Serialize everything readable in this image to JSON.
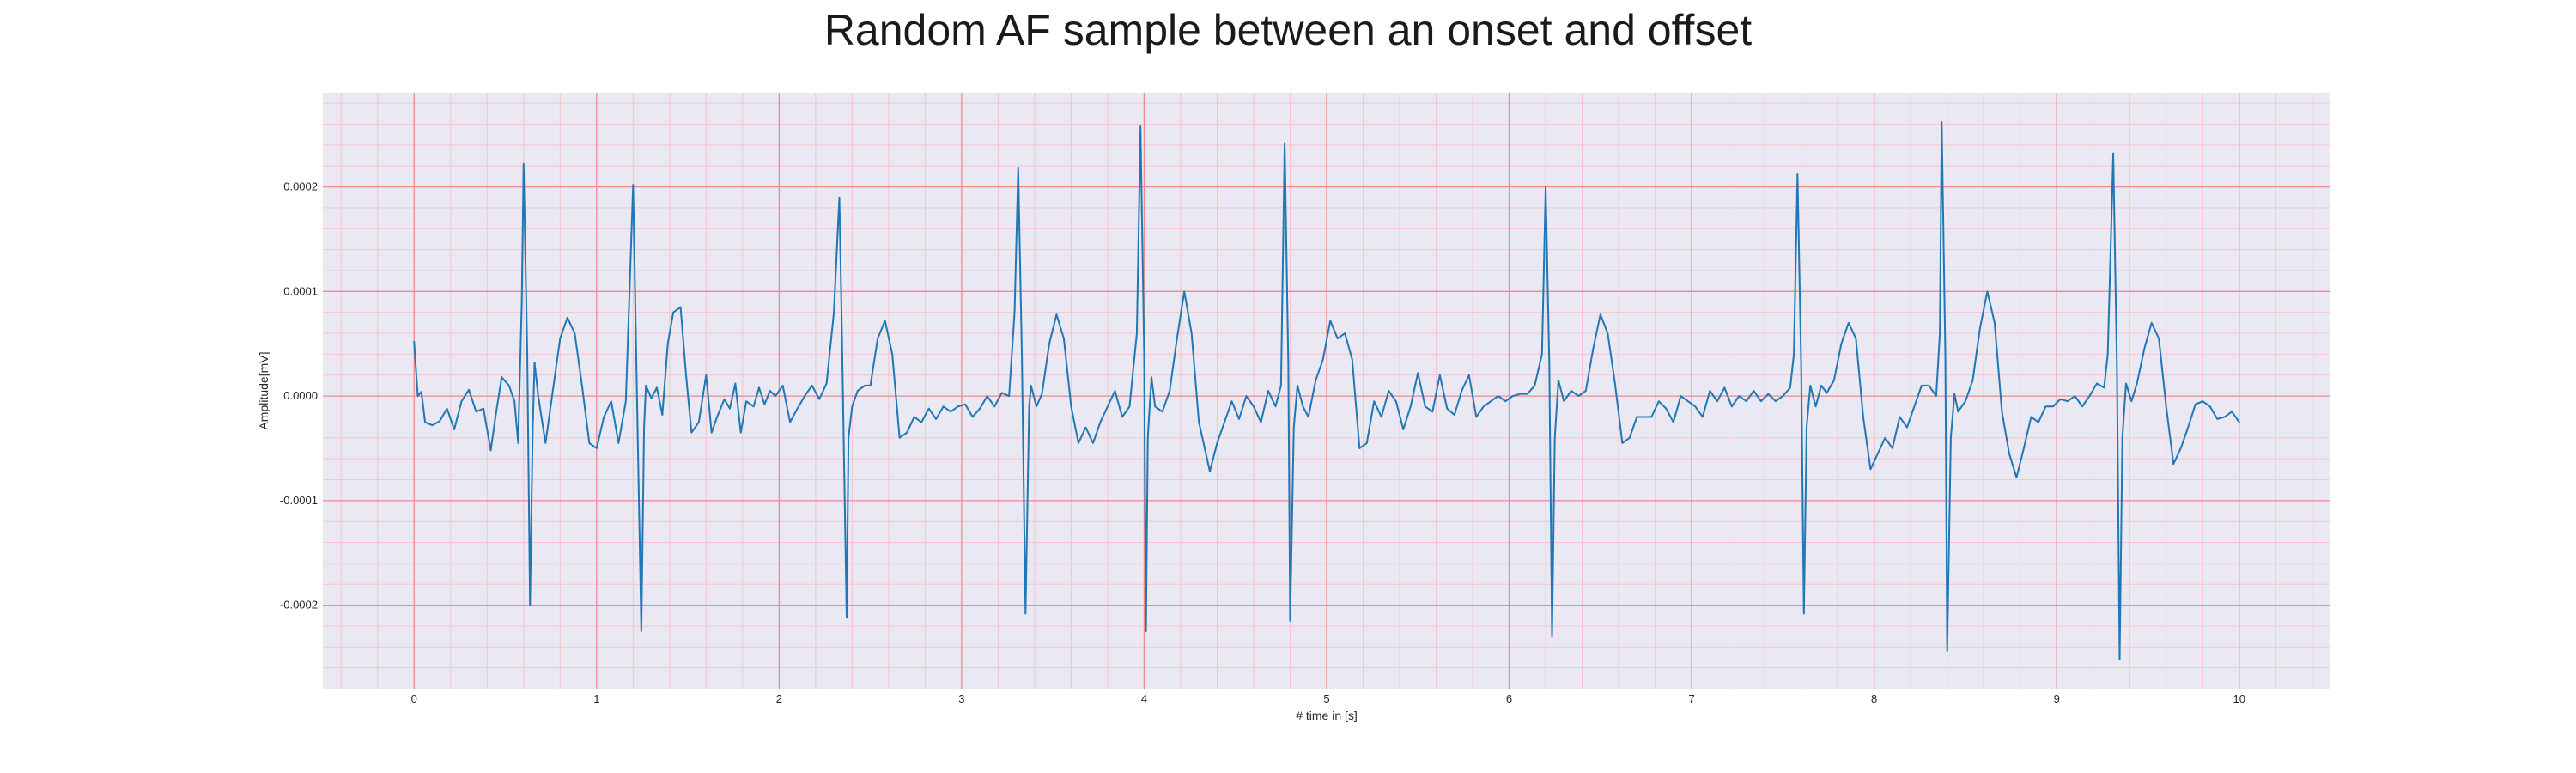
{
  "chart_data": {
    "type": "line",
    "title": "Random AF sample between an onset and offset",
    "xlabel": "# time in [s]",
    "ylabel": "Amplitude[mV]",
    "xlim": [
      -0.5,
      10.5
    ],
    "ylim": [
      -0.00028,
      0.00029
    ],
    "x_ticks": [
      0,
      1,
      2,
      3,
      4,
      5,
      6,
      7,
      8,
      9,
      10
    ],
    "x_tick_labels": [
      "0",
      "1",
      "2",
      "3",
      "4",
      "5",
      "6",
      "7",
      "8",
      "9",
      "10"
    ],
    "y_ticks": [
      -0.0002,
      -0.0001,
      0.0,
      0.0001,
      0.0002
    ],
    "y_tick_labels": [
      "-0.0002",
      "-0.0001",
      "0.0000",
      "0.0001",
      "0.0002"
    ],
    "grid": true,
    "minor_grid": true,
    "colors": {
      "line": "#1f77b4",
      "plot_background": "#eae8f2",
      "major_grid": "#f08a8a",
      "minor_grid": "#f4c6c8"
    },
    "series": [
      {
        "values": [
          [
            0.0,
            5.2e-05
          ],
          [
            0.02,
            0.0
          ],
          [
            0.04,
            4e-06
          ],
          [
            0.06,
            -2.5e-05
          ],
          [
            0.1,
            -2.8e-05
          ],
          [
            0.14,
            -2.4e-05
          ],
          [
            0.18,
            -1.2e-05
          ],
          [
            0.22,
            -3.2e-05
          ],
          [
            0.26,
            -5e-06
          ],
          [
            0.3,
            6e-06
          ],
          [
            0.34,
            -1.5e-05
          ],
          [
            0.38,
            -1.2e-05
          ],
          [
            0.42,
            -5.2e-05
          ],
          [
            0.45,
            -1.5e-05
          ],
          [
            0.48,
            1.8e-05
          ],
          [
            0.52,
            1e-05
          ],
          [
            0.55,
            -5e-06
          ],
          [
            0.57,
            -4.5e-05
          ],
          [
            0.59,
            9e-05
          ],
          [
            0.6,
            0.000222
          ],
          [
            0.62,
            4e-05
          ],
          [
            0.635,
            -0.0002
          ],
          [
            0.65,
            -3e-05
          ],
          [
            0.66,
            3.2e-05
          ],
          [
            0.68,
            0.0
          ],
          [
            0.72,
            -4.5e-05
          ],
          [
            0.76,
            5e-06
          ],
          [
            0.8,
            5.5e-05
          ],
          [
            0.84,
            7.5e-05
          ],
          [
            0.88,
            6e-05
          ],
          [
            0.92,
            1e-05
          ],
          [
            0.96,
            -4.5e-05
          ],
          [
            1.0,
            -5e-05
          ],
          [
            1.04,
            -2e-05
          ],
          [
            1.08,
            -5e-06
          ],
          [
            1.12,
            -4.5e-05
          ],
          [
            1.16,
            -5e-06
          ],
          [
            1.2,
            0.000202
          ],
          [
            1.22,
            1e-05
          ],
          [
            1.245,
            -0.000225
          ],
          [
            1.26,
            -3e-05
          ],
          [
            1.27,
            1e-05
          ],
          [
            1.3,
            -2e-06
          ],
          [
            1.33,
            8e-06
          ],
          [
            1.36,
            -1.8e-05
          ],
          [
            1.39,
            5e-05
          ],
          [
            1.42,
            8e-05
          ],
          [
            1.46,
            8.5e-05
          ],
          [
            1.49,
            2e-05
          ],
          [
            1.52,
            -3.5e-05
          ],
          [
            1.56,
            -2.5e-05
          ],
          [
            1.6,
            2e-05
          ],
          [
            1.63,
            -3.5e-05
          ],
          [
            1.66,
            -2e-05
          ],
          [
            1.7,
            -3e-06
          ],
          [
            1.73,
            -1.2e-05
          ],
          [
            1.76,
            1.2e-05
          ],
          [
            1.79,
            -3.5e-05
          ],
          [
            1.82,
            -5e-06
          ],
          [
            1.86,
            -1e-05
          ],
          [
            1.89,
            8e-06
          ],
          [
            1.92,
            -8e-06
          ],
          [
            1.95,
            5e-06
          ],
          [
            1.98,
            0.0
          ],
          [
            2.02,
            1e-05
          ],
          [
            2.06,
            -2.5e-05
          ],
          [
            2.1,
            -1.2e-05
          ],
          [
            2.14,
            0.0
          ],
          [
            2.18,
            1e-05
          ],
          [
            2.22,
            -3e-06
          ],
          [
            2.26,
            1.2e-05
          ],
          [
            2.3,
            8e-05
          ],
          [
            2.33,
            0.00019
          ],
          [
            2.345,
            5e-05
          ],
          [
            2.37,
            -0.000212
          ],
          [
            2.38,
            -4e-05
          ],
          [
            2.4,
            -1e-05
          ],
          [
            2.43,
            5e-06
          ],
          [
            2.47,
            1e-05
          ],
          [
            2.5,
            1e-05
          ],
          [
            2.54,
            5.5e-05
          ],
          [
            2.58,
            7.2e-05
          ],
          [
            2.62,
            4e-05
          ],
          [
            2.66,
            -4e-05
          ],
          [
            2.7,
            -3.5e-05
          ],
          [
            2.74,
            -2e-05
          ],
          [
            2.78,
            -2.5e-05
          ],
          [
            2.82,
            -1.2e-05
          ],
          [
            2.86,
            -2.2e-05
          ],
          [
            2.9,
            -1e-05
          ],
          [
            2.94,
            -1.5e-05
          ],
          [
            2.98,
            -1e-05
          ],
          [
            3.02,
            -8e-06
          ],
          [
            3.06,
            -2e-05
          ],
          [
            3.1,
            -1.2e-05
          ],
          [
            3.14,
            0.0
          ],
          [
            3.18,
            -1e-05
          ],
          [
            3.22,
            3e-06
          ],
          [
            3.26,
            0.0
          ],
          [
            3.29,
            8e-05
          ],
          [
            3.31,
            0.000218
          ],
          [
            3.33,
            4e-05
          ],
          [
            3.35,
            -0.000208
          ],
          [
            3.37,
            -1e-05
          ],
          [
            3.38,
            1e-05
          ],
          [
            3.41,
            -1e-05
          ],
          [
            3.44,
            2e-06
          ],
          [
            3.48,
            5e-05
          ],
          [
            3.52,
            7.8e-05
          ],
          [
            3.56,
            5.5e-05
          ],
          [
            3.6,
            -1e-05
          ],
          [
            3.64,
            -4.5e-05
          ],
          [
            3.68,
            -3e-05
          ],
          [
            3.72,
            -4.5e-05
          ],
          [
            3.76,
            -2.5e-05
          ],
          [
            3.8,
            -1e-05
          ],
          [
            3.84,
            5e-06
          ],
          [
            3.88,
            -2e-05
          ],
          [
            3.92,
            -1e-05
          ],
          [
            3.96,
            6e-05
          ],
          [
            3.98,
            0.000258
          ],
          [
            4.0,
            4e-05
          ],
          [
            4.01,
            -0.000225
          ],
          [
            4.02,
            -4e-05
          ],
          [
            4.04,
            1.8e-05
          ],
          [
            4.06,
            -1e-05
          ],
          [
            4.1,
            -1.5e-05
          ],
          [
            4.14,
            5e-06
          ],
          [
            4.18,
            5.5e-05
          ],
          [
            4.22,
            0.0001
          ],
          [
            4.26,
            6e-05
          ],
          [
            4.3,
            -2.5e-05
          ],
          [
            4.36,
            -7.2e-05
          ],
          [
            4.4,
            -4.5e-05
          ],
          [
            4.44,
            -2.5e-05
          ],
          [
            4.48,
            -5e-06
          ],
          [
            4.52,
            -2.2e-05
          ],
          [
            4.56,
            0.0
          ],
          [
            4.6,
            -1e-05
          ],
          [
            4.64,
            -2.5e-05
          ],
          [
            4.68,
            5e-06
          ],
          [
            4.72,
            -1e-05
          ],
          [
            4.75,
            1e-05
          ],
          [
            4.77,
            0.000242
          ],
          [
            4.79,
            3e-05
          ],
          [
            4.8,
            -0.000215
          ],
          [
            4.82,
            -3e-05
          ],
          [
            4.84,
            1e-05
          ],
          [
            4.87,
            -1e-05
          ],
          [
            4.9,
            -2e-05
          ],
          [
            4.94,
            1.5e-05
          ],
          [
            4.98,
            3.5e-05
          ],
          [
            5.02,
            7.2e-05
          ],
          [
            5.06,
            5.5e-05
          ],
          [
            5.1,
            6e-05
          ],
          [
            5.14,
            3.5e-05
          ],
          [
            5.18,
            -5e-05
          ],
          [
            5.22,
            -4.5e-05
          ],
          [
            5.26,
            -5e-06
          ],
          [
            5.3,
            -2e-05
          ],
          [
            5.34,
            5e-06
          ],
          [
            5.38,
            -5e-06
          ],
          [
            5.42,
            -3.2e-05
          ],
          [
            5.46,
            -1e-05
          ],
          [
            5.5,
            2.2e-05
          ],
          [
            5.54,
            -1e-05
          ],
          [
            5.58,
            -1.5e-05
          ],
          [
            5.62,
            2e-05
          ],
          [
            5.66,
            -1.2e-05
          ],
          [
            5.7,
            -1.8e-05
          ],
          [
            5.74,
            5e-06
          ],
          [
            5.78,
            2e-05
          ],
          [
            5.82,
            -2e-05
          ],
          [
            5.86,
            -1e-05
          ],
          [
            5.9,
            -5e-06
          ],
          [
            5.94,
            0.0
          ],
          [
            5.98,
            -5e-06
          ],
          [
            6.02,
            0.0
          ],
          [
            6.06,
            2e-06
          ],
          [
            6.1,
            2e-06
          ],
          [
            6.14,
            1e-05
          ],
          [
            6.18,
            4e-05
          ],
          [
            6.2,
            0.0002
          ],
          [
            6.22,
            3e-05
          ],
          [
            6.235,
            -0.00023
          ],
          [
            6.25,
            -4e-05
          ],
          [
            6.27,
            1.5e-05
          ],
          [
            6.3,
            -5e-06
          ],
          [
            6.34,
            5e-06
          ],
          [
            6.38,
            0.0
          ],
          [
            6.42,
            5e-06
          ],
          [
            6.46,
            4.5e-05
          ],
          [
            6.5,
            7.8e-05
          ],
          [
            6.54,
            6e-05
          ],
          [
            6.58,
            1.2e-05
          ],
          [
            6.62,
            -4.5e-05
          ],
          [
            6.66,
            -4e-05
          ],
          [
            6.7,
            -2e-05
          ],
          [
            6.74,
            -2e-05
          ],
          [
            6.78,
            -2e-05
          ],
          [
            6.82,
            -5e-06
          ],
          [
            6.86,
            -1.2e-05
          ],
          [
            6.9,
            -2.5e-05
          ],
          [
            6.94,
            0.0
          ],
          [
            6.98,
            -5e-06
          ],
          [
            7.02,
            -1e-05
          ],
          [
            7.06,
            -2e-05
          ],
          [
            7.1,
            5e-06
          ],
          [
            7.14,
            -5e-06
          ],
          [
            7.18,
            8e-06
          ],
          [
            7.22,
            -1e-05
          ],
          [
            7.26,
            0.0
          ],
          [
            7.3,
            -5e-06
          ],
          [
            7.34,
            5e-06
          ],
          [
            7.38,
            -5e-06
          ],
          [
            7.42,
            2e-06
          ],
          [
            7.46,
            -5e-06
          ],
          [
            7.5,
            0.0
          ],
          [
            7.54,
            8e-06
          ],
          [
            7.56,
            4e-05
          ],
          [
            7.58,
            0.000212
          ],
          [
            7.6,
            3e-05
          ],
          [
            7.615,
            -0.000208
          ],
          [
            7.63,
            -3e-05
          ],
          [
            7.65,
            1e-05
          ],
          [
            7.68,
            -1e-05
          ],
          [
            7.71,
            1e-05
          ],
          [
            7.74,
            3e-06
          ],
          [
            7.78,
            1.5e-05
          ],
          [
            7.82,
            5e-05
          ],
          [
            7.86,
            7e-05
          ],
          [
            7.9,
            5.5e-05
          ],
          [
            7.94,
            -2e-05
          ],
          [
            7.98,
            -7e-05
          ],
          [
            8.02,
            -5.5e-05
          ],
          [
            8.06,
            -4e-05
          ],
          [
            8.1,
            -5e-05
          ],
          [
            8.14,
            -2e-05
          ],
          [
            8.18,
            -3e-05
          ],
          [
            8.22,
            -1e-05
          ],
          [
            8.26,
            1e-05
          ],
          [
            8.3,
            1e-05
          ],
          [
            8.34,
            0.0
          ],
          [
            8.36,
            6e-05
          ],
          [
            8.37,
            0.000262
          ],
          [
            8.39,
            4e-05
          ],
          [
            8.4,
            -0.000244
          ],
          [
            8.42,
            -4e-05
          ],
          [
            8.44,
            2e-06
          ],
          [
            8.46,
            -1.5e-05
          ],
          [
            8.5,
            -5e-06
          ],
          [
            8.54,
            1.5e-05
          ],
          [
            8.58,
            6.5e-05
          ],
          [
            8.62,
            0.0001
          ],
          [
            8.66,
            7e-05
          ],
          [
            8.7,
            -1.5e-05
          ],
          [
            8.74,
            -5.5e-05
          ],
          [
            8.78,
            -7.8e-05
          ],
          [
            8.82,
            -5e-05
          ],
          [
            8.86,
            -2e-05
          ],
          [
            8.9,
            -2.5e-05
          ],
          [
            8.94,
            -1e-05
          ],
          [
            8.98,
            -1e-05
          ],
          [
            9.02,
            -3e-06
          ],
          [
            9.06,
            -5e-06
          ],
          [
            9.1,
            0.0
          ],
          [
            9.14,
            -1e-05
          ],
          [
            9.18,
            0.0
          ],
          [
            9.22,
            1.2e-05
          ],
          [
            9.26,
            8e-06
          ],
          [
            9.28,
            4e-05
          ],
          [
            9.31,
            0.000232
          ],
          [
            9.33,
            3e-05
          ],
          [
            9.345,
            -0.000252
          ],
          [
            9.36,
            -4e-05
          ],
          [
            9.38,
            1.2e-05
          ],
          [
            9.41,
            -5e-06
          ],
          [
            9.44,
            1.2e-05
          ],
          [
            9.48,
            4.5e-05
          ],
          [
            9.52,
            7e-05
          ],
          [
            9.56,
            5.5e-05
          ],
          [
            9.6,
            -1e-05
          ],
          [
            9.64,
            -6.5e-05
          ],
          [
            9.68,
            -5e-05
          ],
          [
            9.72,
            -3e-05
          ],
          [
            9.76,
            -8e-06
          ],
          [
            9.8,
            -5e-06
          ],
          [
            9.84,
            -1e-05
          ],
          [
            9.88,
            -2.2e-05
          ],
          [
            9.92,
            -2e-05
          ],
          [
            9.96,
            -1.5e-05
          ],
          [
            10.0,
            -2.5e-05
          ]
        ]
      }
    ]
  }
}
